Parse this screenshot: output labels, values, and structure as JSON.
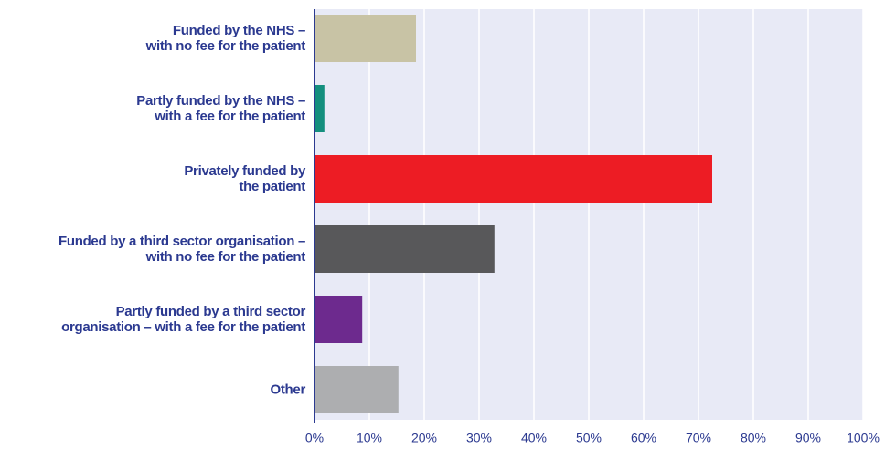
{
  "chart_data": {
    "type": "barh",
    "categories": [
      "Funded by the NHS –\nwith no fee for the patient",
      "Partly funded by the NHS –\nwith a fee for the patient",
      "Privately funded by\nthe patient",
      "Funded by a third sector organisation –\nwith no fee for the patient",
      "Partly funded by a third sector\norganisation – with a fee for the patient",
      "Other"
    ],
    "values": [
      18.5,
      1.8,
      72.5,
      32.8,
      8.7,
      15.3
    ],
    "colors": [
      "#c8c3a5",
      "#148f7e",
      "#ed1c24",
      "#58585a",
      "#6d2a8e",
      "#adaeb0"
    ],
    "xlim": [
      0,
      100
    ],
    "xticks": [
      {
        "value": 0,
        "label": "0%"
      },
      {
        "value": 10,
        "label": "10%"
      },
      {
        "value": 20,
        "label": "20%"
      },
      {
        "value": 30,
        "label": "30%"
      },
      {
        "value": 40,
        "label": "40%"
      },
      {
        "value": 50,
        "label": "50%"
      },
      {
        "value": 60,
        "label": "60%"
      },
      {
        "value": 70,
        "label": "70%"
      },
      {
        "value": 80,
        "label": "80%"
      },
      {
        "value": 90,
        "label": "90%"
      },
      {
        "value": 100,
        "label": "100%"
      }
    ],
    "grid": true
  }
}
